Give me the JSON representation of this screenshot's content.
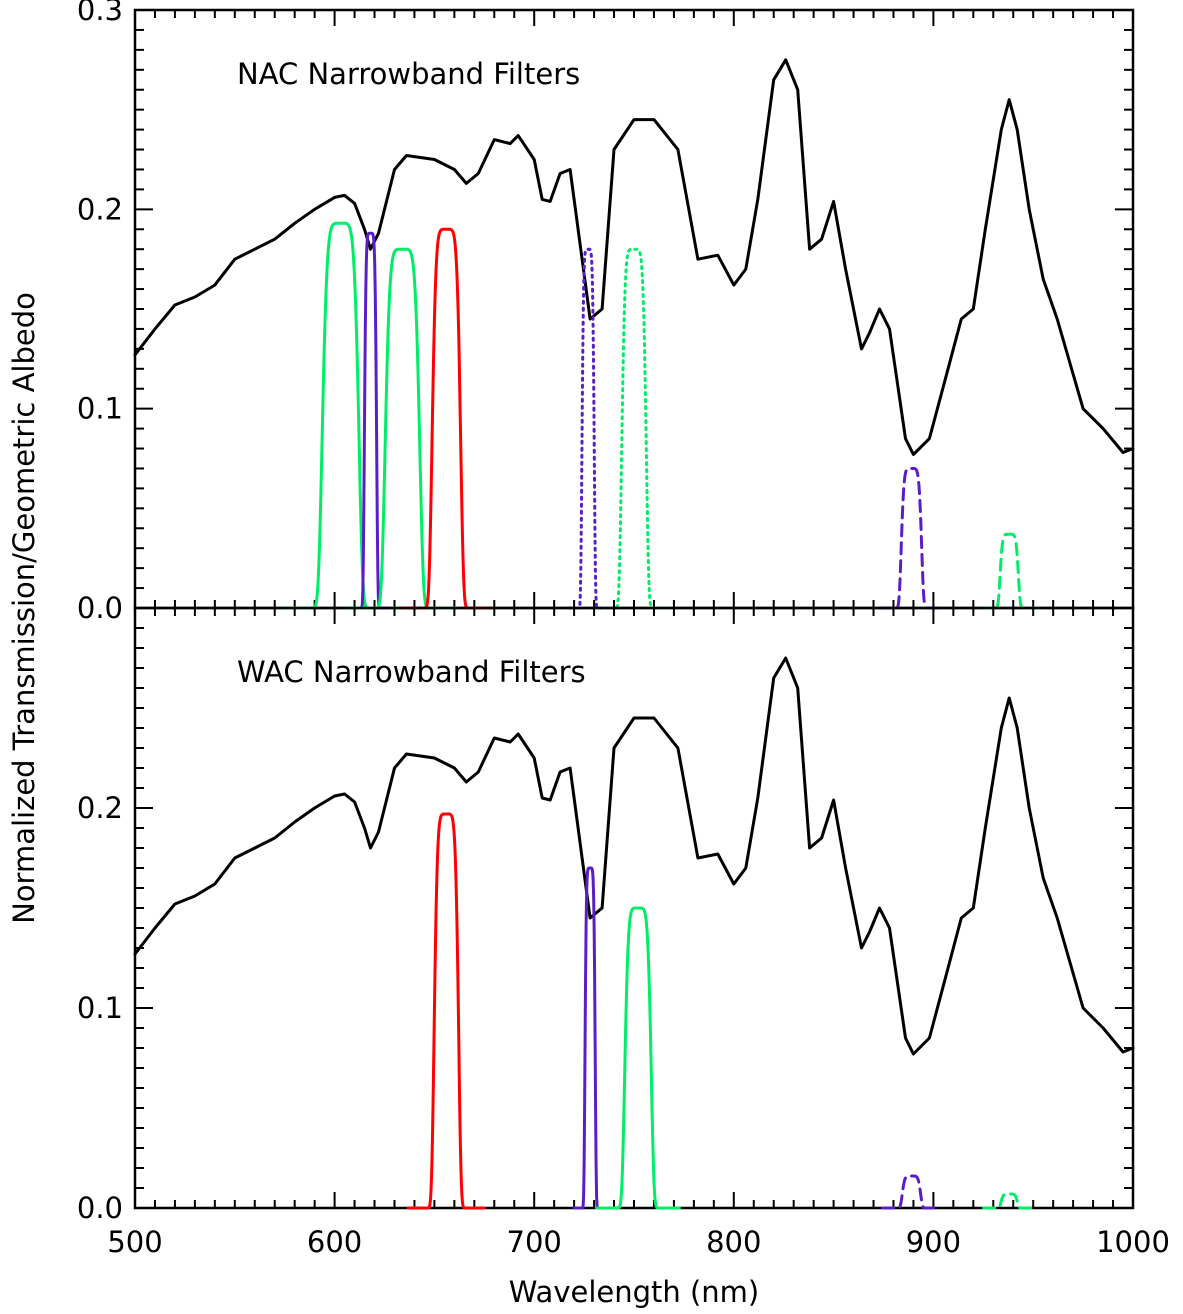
{
  "chart_data": {
    "type": "line",
    "xlabel": "Wavelength (nm)",
    "ylabel": "Normalized Transmission/Geometric Albedo",
    "xlim": [
      500,
      1000
    ],
    "x_ticks": [
      "500",
      "600",
      "700",
      "800",
      "900",
      "1000"
    ],
    "colors": {
      "albedo": "#000000",
      "red": "#ff0000",
      "blue": "#5a1ec8",
      "green": "#00ee66"
    },
    "albedo": {
      "x": [
        500,
        510,
        520,
        530,
        540,
        550,
        560,
        570,
        580,
        590,
        600,
        605,
        610,
        615,
        618,
        622,
        630,
        636,
        650,
        660,
        666,
        672,
        680,
        688,
        692,
        700,
        704,
        708,
        713,
        718,
        724,
        728,
        734,
        740,
        750,
        760,
        772,
        782,
        792,
        800,
        806,
        812,
        820,
        826,
        832,
        838,
        844,
        850,
        856,
        864,
        868,
        873,
        878,
        886,
        890,
        898,
        906,
        914,
        920,
        926,
        934,
        938,
        942,
        948,
        955,
        962,
        975,
        985,
        995,
        1000
      ],
      "y": [
        0.127,
        0.14,
        0.152,
        0.156,
        0.162,
        0.175,
        0.18,
        0.185,
        0.193,
        0.2,
        0.206,
        0.207,
        0.203,
        0.19,
        0.18,
        0.188,
        0.22,
        0.227,
        0.225,
        0.22,
        0.213,
        0.218,
        0.235,
        0.233,
        0.237,
        0.225,
        0.205,
        0.204,
        0.218,
        0.22,
        0.175,
        0.145,
        0.15,
        0.23,
        0.245,
        0.245,
        0.23,
        0.175,
        0.177,
        0.162,
        0.17,
        0.205,
        0.265,
        0.275,
        0.26,
        0.18,
        0.185,
        0.204,
        0.17,
        0.13,
        0.138,
        0.15,
        0.14,
        0.085,
        0.077,
        0.085,
        0.115,
        0.145,
        0.15,
        0.19,
        0.24,
        0.255,
        0.24,
        0.2,
        0.165,
        0.145,
        0.1,
        0.09,
        0.078,
        0.08
      ]
    },
    "panels": [
      {
        "title": "NAC Narrowband Filters",
        "ylim": [
          0,
          0.3
        ],
        "y_ticks": [
          "0.0",
          "0.1",
          "0.2",
          "0.3"
        ],
        "filters": [
          {
            "color": "green",
            "style": "solid",
            "center": 603,
            "width": 18,
            "peak": 0.193
          },
          {
            "color": "blue",
            "style": "solid",
            "center": 618,
            "width": 6,
            "peak": 0.188
          },
          {
            "color": "green",
            "style": "solid",
            "center": 634,
            "width": 17,
            "peak": 0.18
          },
          {
            "color": "red",
            "style": "solid",
            "center": 656,
            "width": 14,
            "peak": 0.19
          },
          {
            "color": "blue",
            "style": "dotted",
            "center": 727,
            "width": 6,
            "peak": 0.18
          },
          {
            "color": "green",
            "style": "dotted",
            "center": 750,
            "width": 12,
            "peak": 0.18
          },
          {
            "color": "blue",
            "style": "dashed",
            "center": 889,
            "width": 10,
            "peak": 0.07
          },
          {
            "color": "green",
            "style": "dashed",
            "center": 938,
            "width": 9,
            "peak": 0.037
          }
        ]
      },
      {
        "title": "WAC Narrowband Filters",
        "ylim": [
          0,
          0.3
        ],
        "y_ticks": [
          "0.0",
          "0.1",
          "0.2"
        ],
        "filters": [
          {
            "color": "red",
            "style": "solid",
            "center": 656,
            "width": 12,
            "peak": 0.197
          },
          {
            "color": "blue",
            "style": "solid",
            "center": 728,
            "width": 5,
            "peak": 0.17
          },
          {
            "color": "green",
            "style": "solid",
            "center": 752,
            "width": 13,
            "peak": 0.15
          },
          {
            "color": "blue",
            "style": "dashed",
            "center": 889,
            "width": 9,
            "peak": 0.016
          },
          {
            "color": "green",
            "style": "dashed",
            "center": 938,
            "width": 8,
            "peak": 0.007
          }
        ]
      }
    ]
  }
}
